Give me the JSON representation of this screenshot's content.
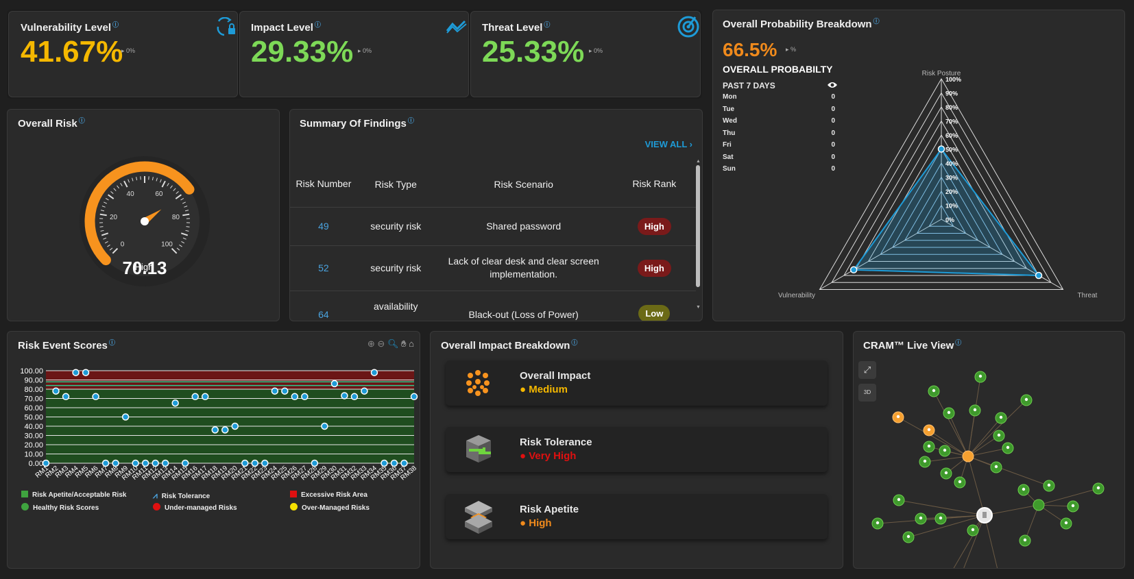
{
  "kpis": [
    {
      "label": "Vulnerability Level",
      "value": "41.67%",
      "delta": "0%",
      "color": "#f5b800"
    },
    {
      "label": "Impact Level",
      "value": "29.33%",
      "delta": "0%",
      "color": "#7dd957"
    },
    {
      "label": "Threat Level",
      "value": "25.33%",
      "delta": "0%",
      "color": "#7dd957"
    }
  ],
  "info_mark": "ⓘ",
  "overall_risk": {
    "title": "Overall Risk",
    "value": "70.13",
    "label": "High",
    "ticks": [
      "0",
      "20",
      "40",
      "60",
      "80",
      "100"
    ]
  },
  "findings": {
    "title": "Summary Of Findings",
    "view_all": "VIEW ALL",
    "headers": {
      "number": "Risk Number",
      "type": "Risk Type",
      "scenario": "Risk Scenario",
      "rank": "Risk Rank"
    },
    "rows": [
      {
        "number": "49",
        "type": "security risk",
        "scenario": "Shared password",
        "rank": "High"
      },
      {
        "number": "52",
        "type": "security risk",
        "scenario": "Lack of clear desk and clear screen implementation.",
        "rank": "High"
      },
      {
        "number": "64",
        "type": "availability",
        "scenario": "Black-out (Loss of Power)",
        "rank": "Low"
      }
    ]
  },
  "probability": {
    "title": "Overall Probability Breakdown",
    "value": "66.5%",
    "delta": "%",
    "subtitle": "OVERALL PROBABILTY",
    "period": "PAST 7 DAYS",
    "days": [
      {
        "day": "Mon",
        "value": "0"
      },
      {
        "day": "Tue",
        "value": "0"
      },
      {
        "day": "Wed",
        "value": "0"
      },
      {
        "day": "Thu",
        "value": "0"
      },
      {
        "day": "Fri",
        "value": "0"
      },
      {
        "day": "Sat",
        "value": "0"
      },
      {
        "day": "Sun",
        "value": "0"
      }
    ],
    "radar_axes": [
      "Risk Posture",
      "Threat",
      "Vulnerability"
    ],
    "radar_ticks": [
      "100%",
      "90%",
      "80%",
      "70%",
      "60%",
      "50%",
      "40%",
      "30%",
      "20%",
      "10%",
      "0%"
    ]
  },
  "chart_data": {
    "type": "scatter",
    "title": "Risk Event Scores",
    "categories": [
      "RM1",
      "RM2",
      "RM3",
      "RM4",
      "RM5",
      "RM6",
      "RM7",
      "RM8",
      "RM9",
      "RM10",
      "RM11",
      "RM12",
      "RM13",
      "RM14",
      "RM15",
      "RM16",
      "RM17",
      "RM18",
      "RM19",
      "RM20",
      "RM21",
      "RM22",
      "RM23",
      "RM24",
      "RM25",
      "RM26",
      "RM27",
      "RM28",
      "RM29",
      "RM30",
      "RM31",
      "RM32",
      "RM33",
      "RM34",
      "RM35",
      "RM36",
      "RM37",
      "RM38"
    ],
    "values": [
      0,
      78,
      72,
      98,
      98,
      72,
      0,
      0,
      50,
      0,
      0,
      0,
      0,
      65,
      0,
      72,
      72,
      36,
      36,
      40,
      0,
      0,
      0,
      78,
      78,
      72,
      72,
      0,
      40,
      86,
      73,
      72,
      78,
      98,
      0,
      0,
      0,
      72
    ],
    "ylim": [
      0,
      100
    ],
    "yticks": [
      "0.00",
      "10.00",
      "20.00",
      "30.00",
      "40.00",
      "50.00",
      "60.00",
      "70.00",
      "80.00",
      "90.00",
      "100.00"
    ],
    "appetite_threshold": 80,
    "tolerance_lines": [
      84,
      88
    ],
    "legend": [
      {
        "label": "Risk Apetite/Acceptable Risk",
        "color": "#3fa43f"
      },
      {
        "label": "Risk Tolerance",
        "color": "#4aa3df"
      },
      {
        "label": "Excessive Risk Area",
        "color": "#e01010"
      },
      {
        "label": "Healthy Risk Scores",
        "color": "#3fa43f"
      },
      {
        "label": "Under-managed Risks",
        "color": "#e01010"
      },
      {
        "label": "Over-Managed Risks",
        "color": "#f5e000"
      }
    ]
  },
  "impact": {
    "title": "Overall Impact Breakdown",
    "items": [
      {
        "name": "Overall Impact",
        "level": "Medium",
        "color": "#f5b800"
      },
      {
        "name": "Risk Tolerance",
        "level": "Very High",
        "color": "#e01010"
      },
      {
        "name": "Risk Apetite",
        "level": "High",
        "color": "#f08a1c"
      }
    ]
  },
  "cram": {
    "title": "CRAM™ Live View",
    "button_3d": "3D"
  }
}
